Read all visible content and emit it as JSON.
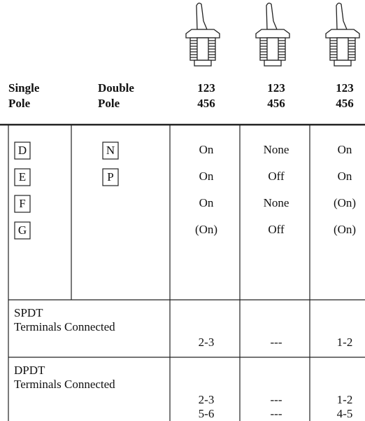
{
  "header": {
    "single_pole": [
      "Single",
      "Pole"
    ],
    "double_pole": [
      "Double",
      "Pole"
    ],
    "switches": [
      [
        "123",
        "456"
      ],
      [
        "123",
        "456"
      ],
      [
        "123",
        "456"
      ]
    ]
  },
  "codes": {
    "single": [
      "D",
      "E",
      "F",
      "G"
    ],
    "double": [
      "N",
      "P"
    ]
  },
  "positions": [
    [
      "On",
      "None",
      "On"
    ],
    [
      "On",
      "Off",
      "On"
    ],
    [
      "On",
      "None",
      "(On)"
    ],
    [
      "(On)",
      "Off",
      "(On)"
    ]
  ],
  "terminals": [
    {
      "type": "SPDT",
      "label": "Terminals Connected",
      "values": [
        [
          "2-3"
        ],
        [
          "---"
        ],
        [
          "1-2"
        ]
      ]
    },
    {
      "type": "DPDT",
      "label": "Terminals Connected",
      "values": [
        [
          "2-3",
          "5-6"
        ],
        [
          "---",
          "---"
        ],
        [
          "1-2",
          "4-5"
        ]
      ]
    }
  ]
}
